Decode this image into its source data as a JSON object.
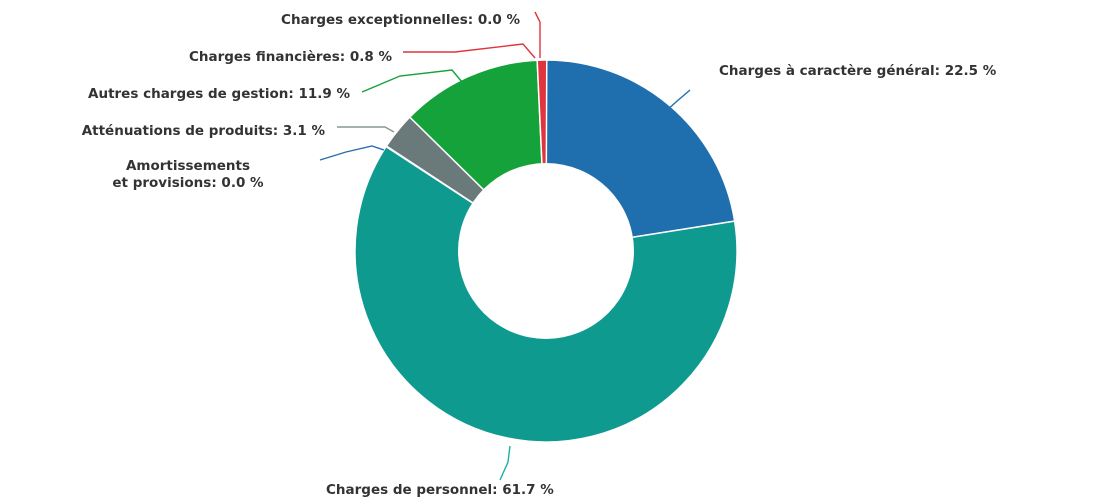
{
  "chart_data": {
    "type": "pie",
    "variant": "donut",
    "legend": "none",
    "slices": [
      {
        "label": "Charges à caractère général",
        "value": 22.5,
        "color": "#1f6fae",
        "display": [
          "Charges à caractère général: 22.5 %"
        ]
      },
      {
        "label": "Charges de personnel",
        "value": 61.7,
        "color": "#0f9a8f",
        "display": [
          "Charges de personnel: 61.7 %"
        ]
      },
      {
        "label": "Amortissements et provisions",
        "value": 0.0,
        "color": "#2b6cb0",
        "display": [
          "Amortissements",
          "et provisions: 0.0 %"
        ]
      },
      {
        "label": "Atténuations de produits",
        "value": 3.1,
        "color": "#6a7a7a",
        "display": [
          "Atténuations de produits: 3.1 %"
        ]
      },
      {
        "label": "Autres charges de gestion",
        "value": 11.9,
        "color": "#15a23a",
        "display": [
          "Autres charges de gestion: 11.9 %"
        ]
      },
      {
        "label": "Charges financières",
        "value": 0.8,
        "color": "#e0343f",
        "display": [
          "Charges financières: 0.8 %"
        ]
      },
      {
        "label": "Charges exceptionnelles",
        "value": 0.0,
        "color": "#e0343f",
        "display": [
          "Charges exceptionnelles: 0.0 %"
        ]
      }
    ]
  }
}
